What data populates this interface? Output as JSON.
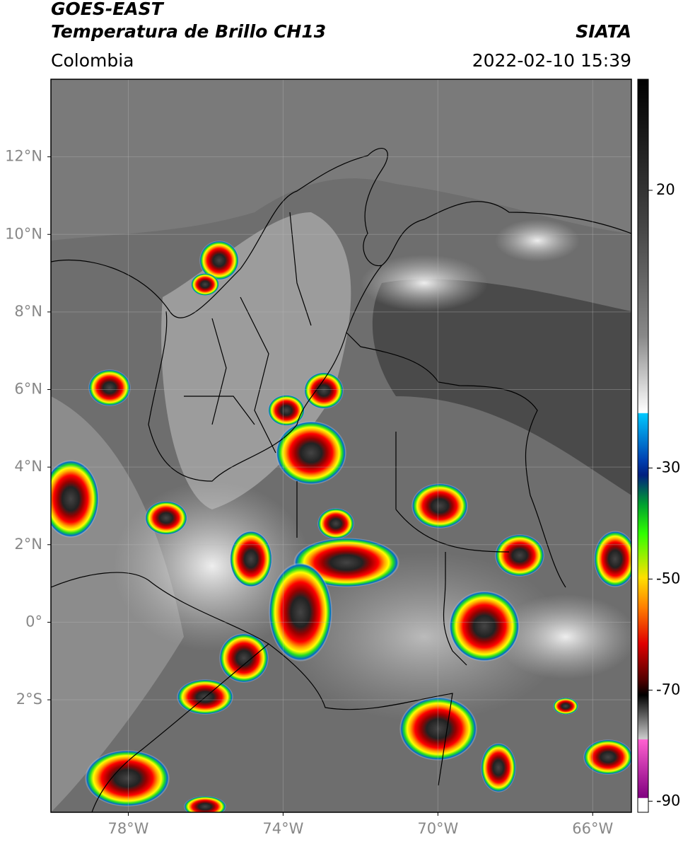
{
  "header": {
    "title": "GOES-EAST",
    "subtitle": "Temperatura de Brillo CH13",
    "source": "SIATA",
    "region": "Colombia",
    "datetime": "2022-02-10 15:39"
  },
  "map": {
    "xlim": [
      -80,
      -65
    ],
    "ylim": [
      -4.9,
      14
    ],
    "xticks": [
      {
        "value": -78,
        "label": "78°W"
      },
      {
        "value": -74,
        "label": "74°W"
      },
      {
        "value": -70,
        "label": "70°W"
      },
      {
        "value": -66,
        "label": "66°W"
      }
    ],
    "yticks": [
      {
        "value": 12,
        "label": "12°N"
      },
      {
        "value": 10,
        "label": "10°N"
      },
      {
        "value": 8,
        "label": "8°N"
      },
      {
        "value": 6,
        "label": "6°N"
      },
      {
        "value": 4,
        "label": "4°N"
      },
      {
        "value": 2,
        "label": "2°N"
      },
      {
        "value": 0,
        "label": "0°"
      },
      {
        "value": -2,
        "label": "2°S"
      }
    ],
    "grid": true
  },
  "colorbar": {
    "lim": [
      -92,
      40
    ],
    "ticks": [
      20,
      -30,
      -50,
      -70,
      -90
    ]
  }
}
